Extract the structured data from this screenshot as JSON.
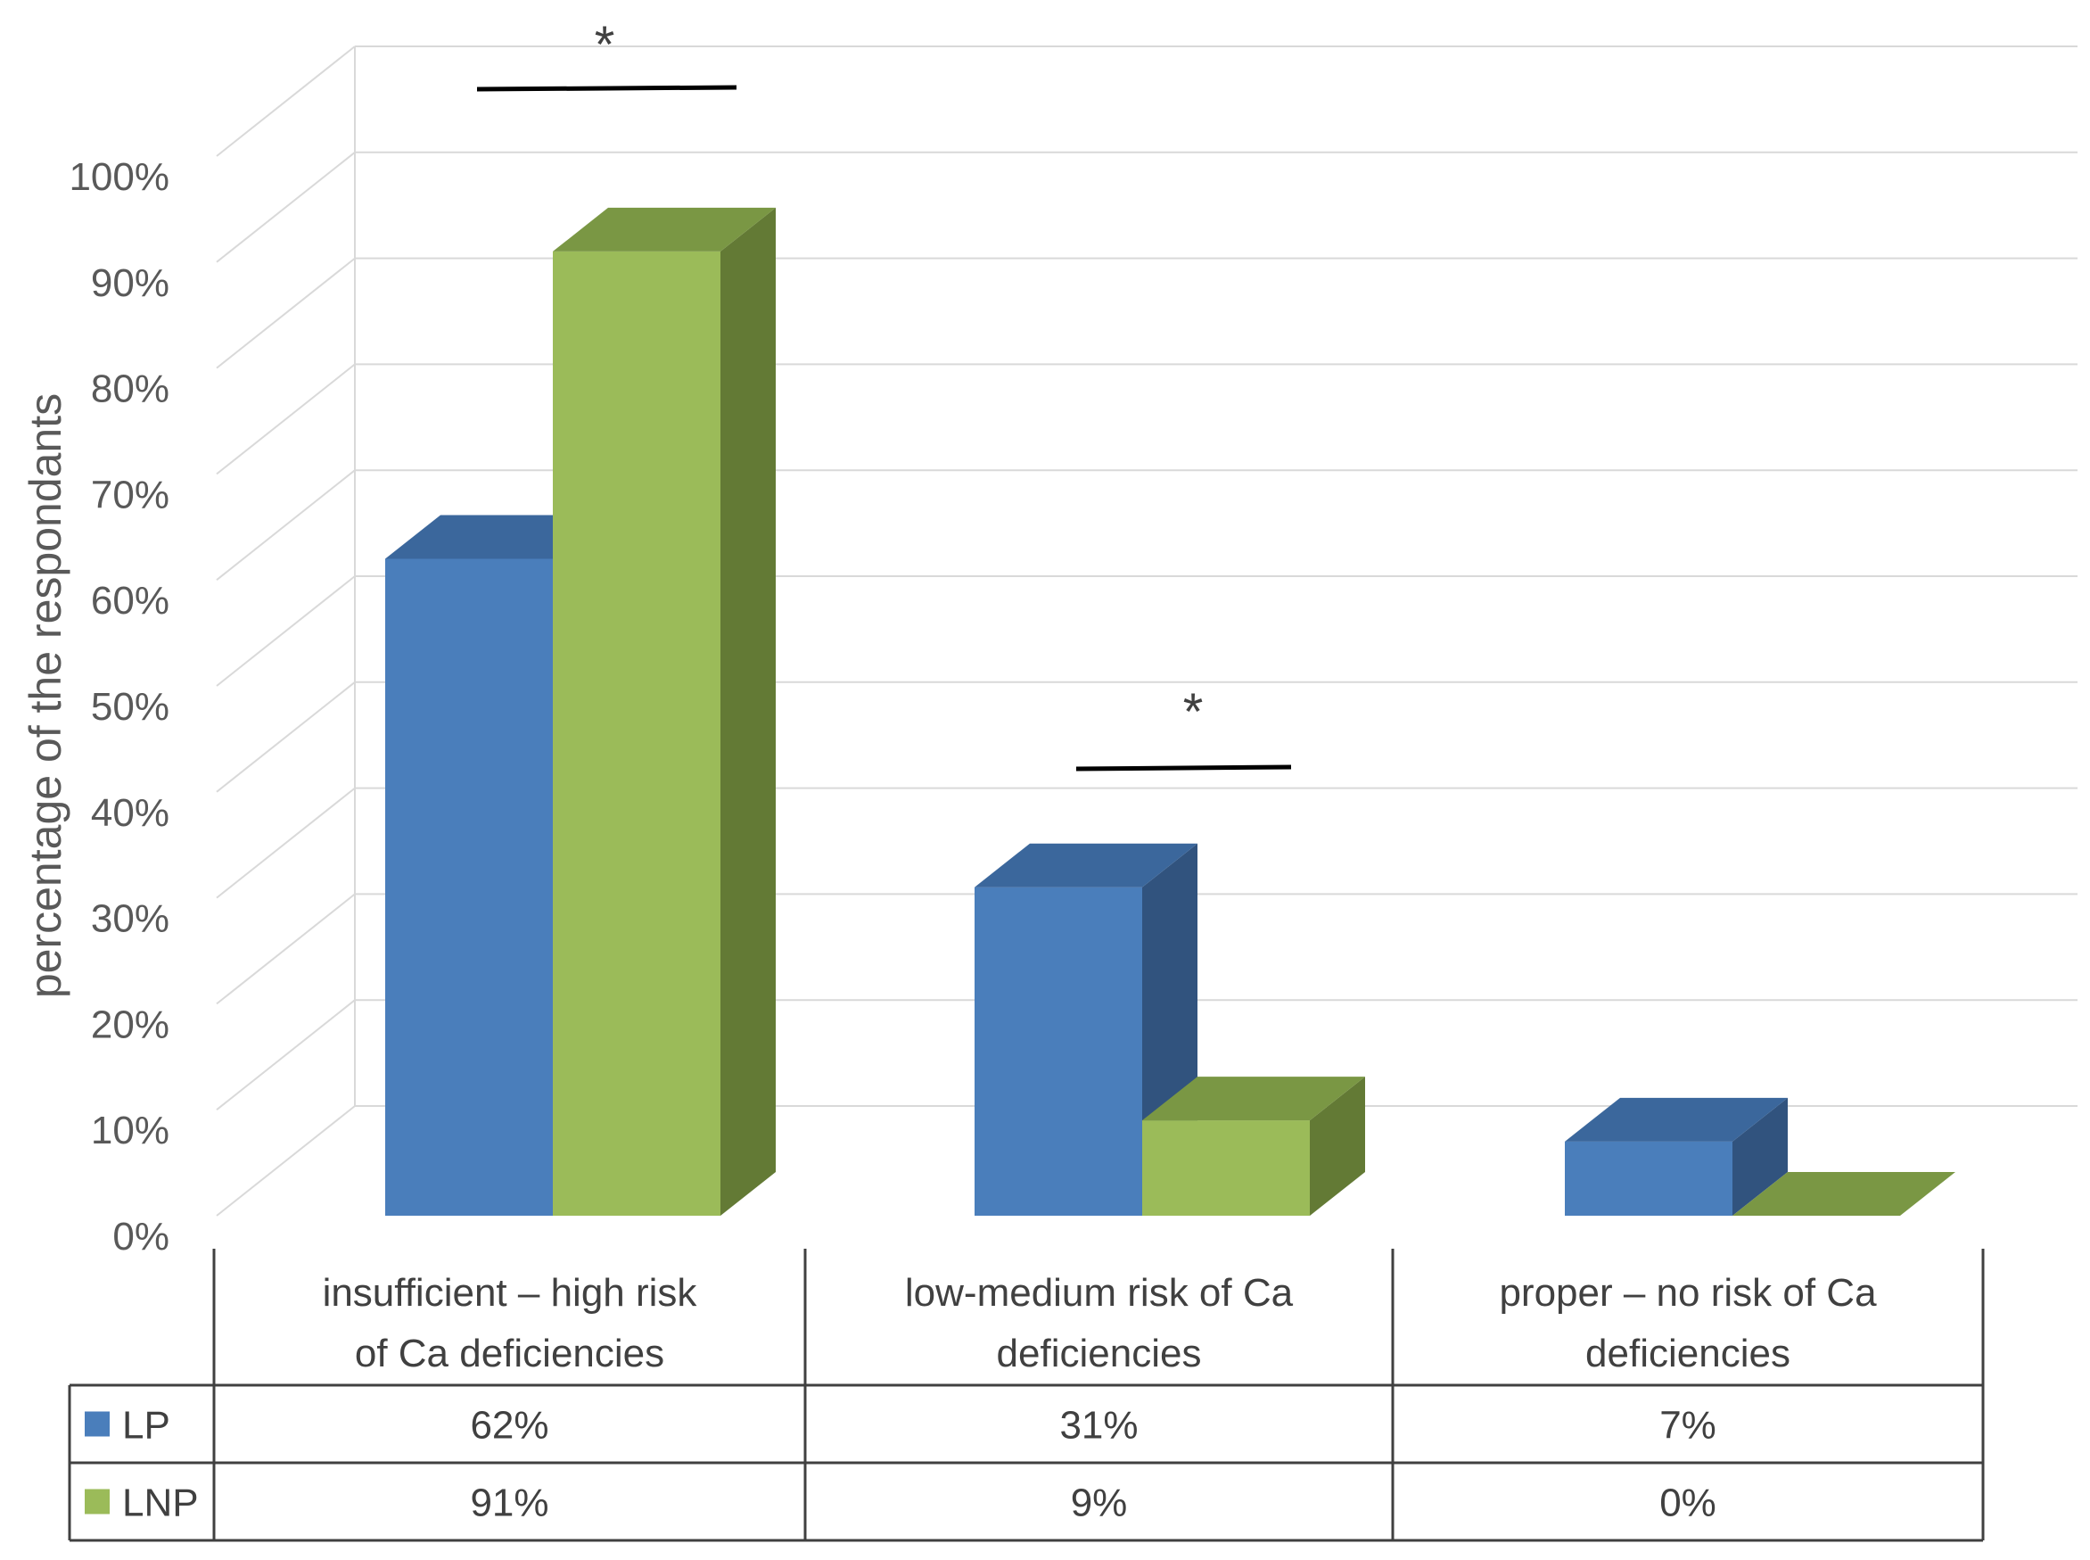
{
  "chart_data": {
    "type": "bar",
    "style": "3d-clustered-column-with-data-table",
    "ylabel": "percentage of the respondants",
    "ylim": [
      0,
      100
    ],
    "yticks": [
      "0%",
      "10%",
      "20%",
      "30%",
      "40%",
      "50%",
      "60%",
      "70%",
      "80%",
      "90%",
      "100%"
    ],
    "categories": [
      [
        "insufficient – high risk",
        "of Ca deficiencies"
      ],
      [
        "low-medium risk of Ca",
        "deficiencies"
      ],
      [
        "proper – no risk of Ca",
        "deficiencies"
      ]
    ],
    "series": [
      {
        "name": "LP",
        "values": [
          62,
          31,
          7
        ],
        "labels": [
          "62%",
          "31%",
          "7%"
        ],
        "color": "#4a7ebb",
        "top": "#3b679c",
        "side": "#31537e"
      },
      {
        "name": "LNP",
        "values": [
          91,
          9,
          0
        ],
        "labels": [
          "91%",
          "9%",
          "0%"
        ],
        "color": "#9bbb59",
        "top": "#7a9744",
        "side": "#637a35"
      }
    ],
    "significance": [
      {
        "category_index": 0,
        "mark": "*"
      },
      {
        "category_index": 1,
        "mark": "*"
      }
    ],
    "grid": true,
    "legend": "data-table-left"
  }
}
